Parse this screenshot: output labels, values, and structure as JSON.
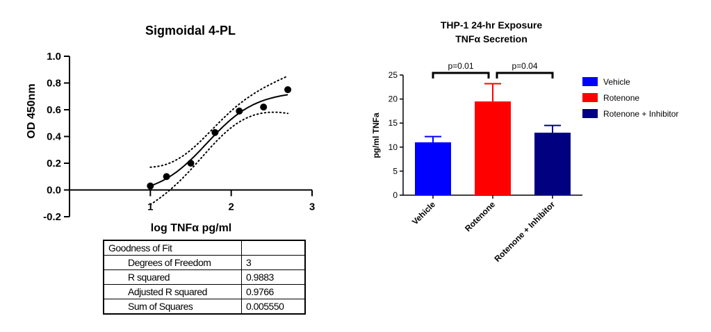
{
  "chart_data": [
    {
      "type": "scatter",
      "title": "Sigmoidal 4-PL",
      "xlabel": "log TNFα pg/ml",
      "ylabel": "OD 450nm",
      "xlim": [
        0,
        3
      ],
      "ylim": [
        -0.2,
        1.0
      ],
      "x_ticks": [
        "1",
        "2",
        "3"
      ],
      "y_ticks": [
        "-0.2",
        "0.0",
        "0.2",
        "0.4",
        "0.6",
        "0.8",
        "1.0"
      ],
      "points": {
        "x": [
          1.0,
          1.2,
          1.5,
          1.8,
          2.1,
          2.4,
          2.7
        ],
        "y": [
          0.03,
          0.1,
          0.2,
          0.43,
          0.59,
          0.62,
          0.75
        ]
      },
      "fit_curve": "solid",
      "confidence_band": "dotted",
      "goodness_of_fit": {
        "header": "Goodness of Fit",
        "rows": [
          {
            "label": "Degrees of Freedom",
            "value": "3"
          },
          {
            "label": "R squared",
            "value": "0.9883"
          },
          {
            "label": "Adjusted R squared",
            "value": "0.9766"
          },
          {
            "label": "Sum of Squares",
            "value": "0.005550"
          }
        ]
      }
    },
    {
      "type": "bar",
      "title": "THP-1 24-hr Exposure",
      "subtitle": "TNFα Secretion",
      "xlabel": "",
      "ylabel": "pg/ml TNFa",
      "ylim": [
        0,
        25
      ],
      "y_ticks": [
        "0",
        "5",
        "10",
        "15",
        "20",
        "25"
      ],
      "categories": [
        "Vehicle",
        "Rotenone",
        "Rotenone + Inhibitor"
      ],
      "values": [
        11.0,
        19.5,
        13.0
      ],
      "errors": [
        1.2,
        3.7,
        1.5
      ],
      "colors": [
        "#0000ff",
        "#ff0000",
        "#000080"
      ],
      "legend": "right",
      "legend_entries": [
        "Vehicle",
        "Rotenone",
        "Rotenone + Inhibitor"
      ],
      "annotations": [
        "p=0.01",
        "p=0.04"
      ]
    }
  ]
}
